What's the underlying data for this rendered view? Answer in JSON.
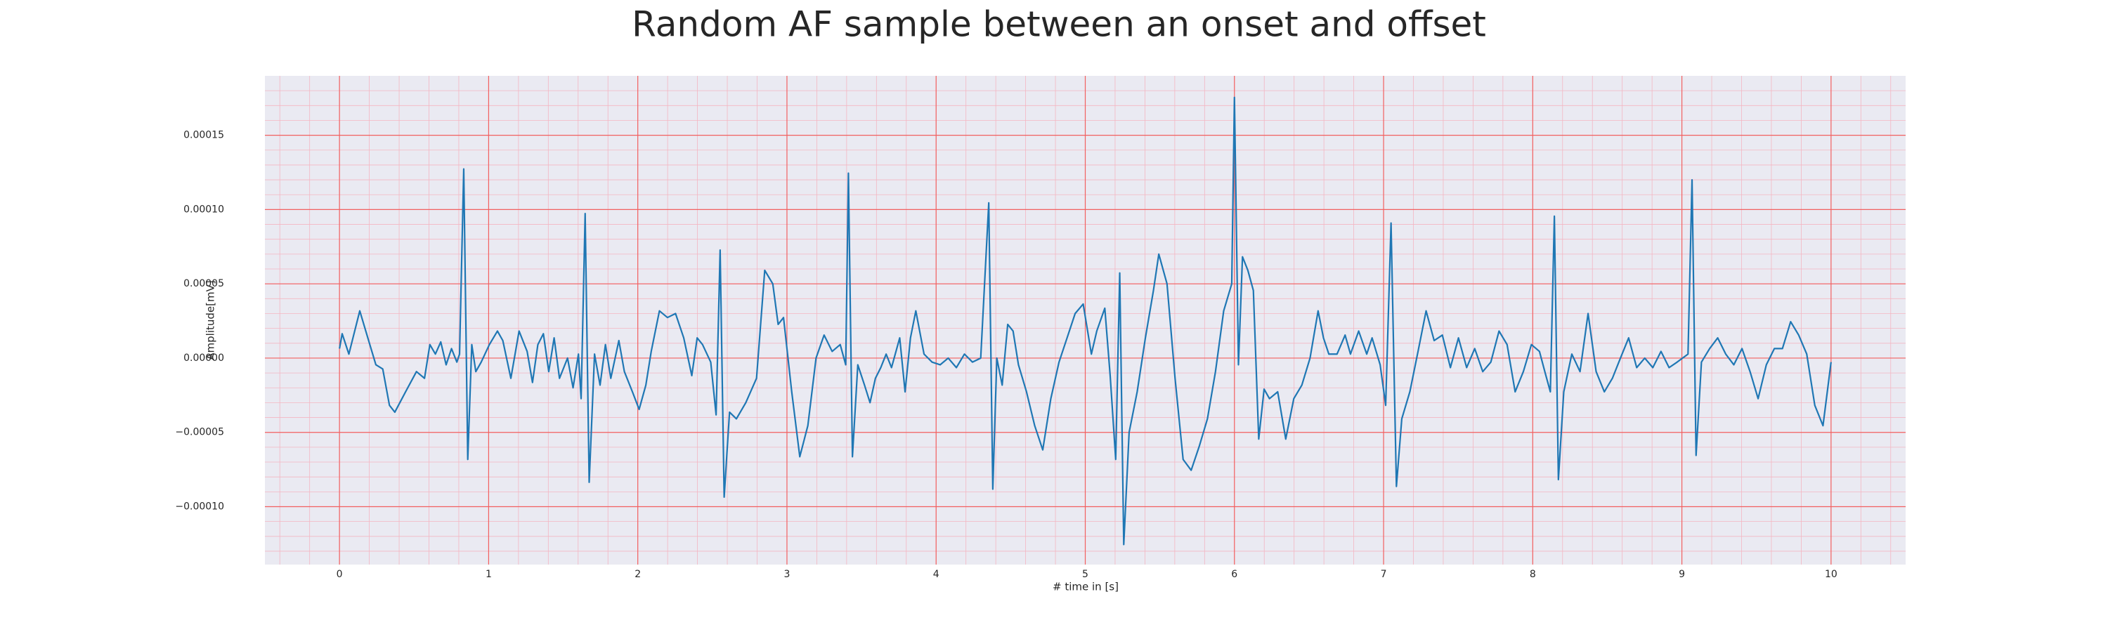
{
  "chart_data": {
    "type": "line",
    "title": "Random AF sample between an onset and offset",
    "xlabel": "# time in [s]",
    "ylabel": "Amplitude[mV]",
    "color": "#1f77b4",
    "grid": true,
    "minor_grid": true,
    "xlim": [
      -0.5,
      10.5
    ],
    "xticks": [
      0,
      1,
      2,
      3,
      4,
      5,
      6,
      7,
      8,
      9,
      10
    ],
    "ylim": [
      -0.000139,
      0.00019
    ],
    "yticks": [
      {
        "value": -0.0001,
        "label": "−0.00010"
      },
      {
        "value": -5e-05,
        "label": "−0.00005"
      },
      {
        "value": 0,
        "label": "0.00000"
      },
      {
        "value": 5e-05,
        "label": "0.00005"
      },
      {
        "value": 0.0001,
        "label": "0.00010"
      },
      {
        "value": 0.00015,
        "label": "0.00015"
      }
    ],
    "x": [
      0,
      0.018,
      0.063,
      0.136,
      0.19,
      0.244,
      0.29,
      0.335,
      0.371,
      0.443,
      0.516,
      0.57,
      0.606,
      0.643,
      0.679,
      0.715,
      0.751,
      0.787,
      0.805,
      0.833,
      0.86,
      0.887,
      0.914,
      0.95,
      1.005,
      1.059,
      1.095,
      1.149,
      1.204,
      1.258,
      1.294,
      1.33,
      1.367,
      1.403,
      1.439,
      1.475,
      1.529,
      1.566,
      1.602,
      1.62,
      1.647,
      1.674,
      1.71,
      1.747,
      1.783,
      1.819,
      1.873,
      1.91,
      1.964,
      2.009,
      2.054,
      2.09,
      2.145,
      2.199,
      2.253,
      2.308,
      2.362,
      2.398,
      2.434,
      2.489,
      2.525,
      2.552,
      2.579,
      2.615,
      2.661,
      2.724,
      2.796,
      2.851,
      2.905,
      2.941,
      2.977,
      3.032,
      3.086,
      3.14,
      3.195,
      3.249,
      3.303,
      3.357,
      3.394,
      3.412,
      3.439,
      3.475,
      3.52,
      3.557,
      3.593,
      3.629,
      3.665,
      3.701,
      3.756,
      3.792,
      3.828,
      3.864,
      3.919,
      3.973,
      4.027,
      4.081,
      4.136,
      4.19,
      4.244,
      4.299,
      4.353,
      4.38,
      4.407,
      4.443,
      4.48,
      4.516,
      4.552,
      4.606,
      4.661,
      4.715,
      4.769,
      4.824,
      4.878,
      4.932,
      4.986,
      5.041,
      5.077,
      5.131,
      5.167,
      5.204,
      5.231,
      5.258,
      5.294,
      5.348,
      5.403,
      5.457,
      5.493,
      5.548,
      5.602,
      5.656,
      5.71,
      5.765,
      5.819,
      5.873,
      5.928,
      5.982,
      6.0,
      6.027,
      6.054,
      6.09,
      6.127,
      6.163,
      6.199,
      6.235,
      6.29,
      6.344,
      6.398,
      6.452,
      6.507,
      6.561,
      6.597,
      6.633,
      6.688,
      6.742,
      6.778,
      6.833,
      6.887,
      6.923,
      6.977,
      7.014,
      7.05,
      7.086,
      7.122,
      7.176,
      7.231,
      7.285,
      7.339,
      7.394,
      7.448,
      7.502,
      7.557,
      7.611,
      7.665,
      7.719,
      7.774,
      7.828,
      7.882,
      7.937,
      7.991,
      8.045,
      8.081,
      8.118,
      8.145,
      8.172,
      8.208,
      8.262,
      8.317,
      8.371,
      8.425,
      8.48,
      8.534,
      8.588,
      8.643,
      8.697,
      8.751,
      8.805,
      8.86,
      8.914,
      8.968,
      9.041,
      9.068,
      9.095,
      9.131,
      9.186,
      9.24,
      9.294,
      9.348,
      9.403,
      9.457,
      9.511,
      9.566,
      9.62,
      9.674,
      9.729,
      9.783,
      9.837,
      9.891,
      9.946,
      10.0
    ],
    "values": [
      6.4e-06,
      1.64e-05,
      2.7e-06,
      3.18e-05,
      1.36e-05,
      -4.5e-06,
      -7.3e-06,
      -3.18e-05,
      -3.64e-05,
      -2.27e-05,
      -9.1e-06,
      -1.36e-05,
      9.1e-06,
      2.7e-06,
      1.09e-05,
      -4.5e-06,
      6.4e-06,
      -2.7e-06,
      2.7e-06,
      0.0001273,
      -6.82e-05,
      9.1e-06,
      -9.1e-06,
      -2.7e-06,
      9.1e-06,
      1.82e-05,
      1.18e-05,
      -1.36e-05,
      1.82e-05,
      4.5e-06,
      -1.64e-05,
      9.1e-06,
      1.64e-05,
      -9.1e-06,
      1.36e-05,
      -1.36e-05,
      0,
      -2e-05,
      2.7e-06,
      -2.73e-05,
      9.73e-05,
      -8.36e-05,
      2.7e-06,
      -1.82e-05,
      9.1e-06,
      -1.36e-05,
      1.18e-05,
      -9.1e-06,
      -2.27e-05,
      -3.45e-05,
      -1.82e-05,
      4.5e-06,
      3.18e-05,
      2.73e-05,
      3e-05,
      1.36e-05,
      -1.18e-05,
      1.36e-05,
      9.1e-06,
      -2.7e-06,
      -3.82e-05,
      7.27e-05,
      -9.36e-05,
      -3.64e-05,
      -4.09e-05,
      -3e-05,
      -1.36e-05,
      5.91e-05,
      5e-05,
      2.27e-05,
      2.73e-05,
      -2.27e-05,
      -6.64e-05,
      -4.55e-05,
      0,
      1.55e-05,
      4.5e-06,
      9.1e-06,
      -4.5e-06,
      0.0001245,
      -6.64e-05,
      -4.5e-06,
      -1.82e-05,
      -3e-05,
      -1.36e-05,
      -6.4e-06,
      2.7e-06,
      -6.4e-06,
      1.36e-05,
      -2.27e-05,
      1.36e-05,
      3.18e-05,
      2.7e-06,
      -2.7e-06,
      -4.5e-06,
      0,
      -6.4e-06,
      2.7e-06,
      -2.7e-06,
      0,
      0.0001045,
      -8.82e-05,
      0,
      -1.82e-05,
      2.27e-05,
      1.82e-05,
      -4.5e-06,
      -2.27e-05,
      -4.55e-05,
      -6.18e-05,
      -2.73e-05,
      -2.7e-06,
      1.36e-05,
      3e-05,
      3.64e-05,
      2.7e-06,
      1.82e-05,
      3.36e-05,
      -1.18e-05,
      -6.82e-05,
      5.73e-05,
      -0.0001255,
      -5e-05,
      -2.27e-05,
      1.36e-05,
      4.55e-05,
      7e-05,
      5e-05,
      -1.36e-05,
      -6.82e-05,
      -7.55e-05,
      -5.91e-05,
      -4.09e-05,
      -9.1e-06,
      3.18e-05,
      5e-05,
      0.0001755,
      -4.5e-06,
      6.82e-05,
      5.91e-05,
      4.55e-05,
      -5.45e-05,
      -2.09e-05,
      -2.73e-05,
      -2.27e-05,
      -5.45e-05,
      -2.73e-05,
      -1.82e-05,
      0,
      3.18e-05,
      1.36e-05,
      2.7e-06,
      2.7e-06,
      1.55e-05,
      2.7e-06,
      1.82e-05,
      2.7e-06,
      1.36e-05,
      -4.5e-06,
      -3.18e-05,
      9.09e-05,
      -8.64e-05,
      -4.09e-05,
      -2.27e-05,
      4.5e-06,
      3.18e-05,
      1.18e-05,
      1.55e-05,
      -6.4e-06,
      1.36e-05,
      -6.4e-06,
      6.4e-06,
      -9.1e-06,
      -2.7e-06,
      1.82e-05,
      9.1e-06,
      -2.27e-05,
      -9.1e-06,
      9.1e-06,
      4.5e-06,
      -9.1e-06,
      -2.27e-05,
      9.55e-05,
      -8.18e-05,
      -2.27e-05,
      2.7e-06,
      -9.1e-06,
      3e-05,
      -9.1e-06,
      -2.27e-05,
      -1.36e-05,
      0,
      1.36e-05,
      -6.4e-06,
      0,
      -6.4e-06,
      4.5e-06,
      -6.4e-06,
      -2.7e-06,
      2.7e-06,
      0.00012,
      -6.55e-05,
      -2.7e-06,
      6.4e-06,
      1.36e-05,
      2.7e-06,
      -4.5e-06,
      6.4e-06,
      -9.1e-06,
      -2.73e-05,
      -4.5e-06,
      6.4e-06,
      6.4e-06,
      2.45e-05,
      1.55e-05,
      2.7e-06,
      -3.18e-05,
      -4.55e-05,
      -2.7e-06
    ]
  }
}
